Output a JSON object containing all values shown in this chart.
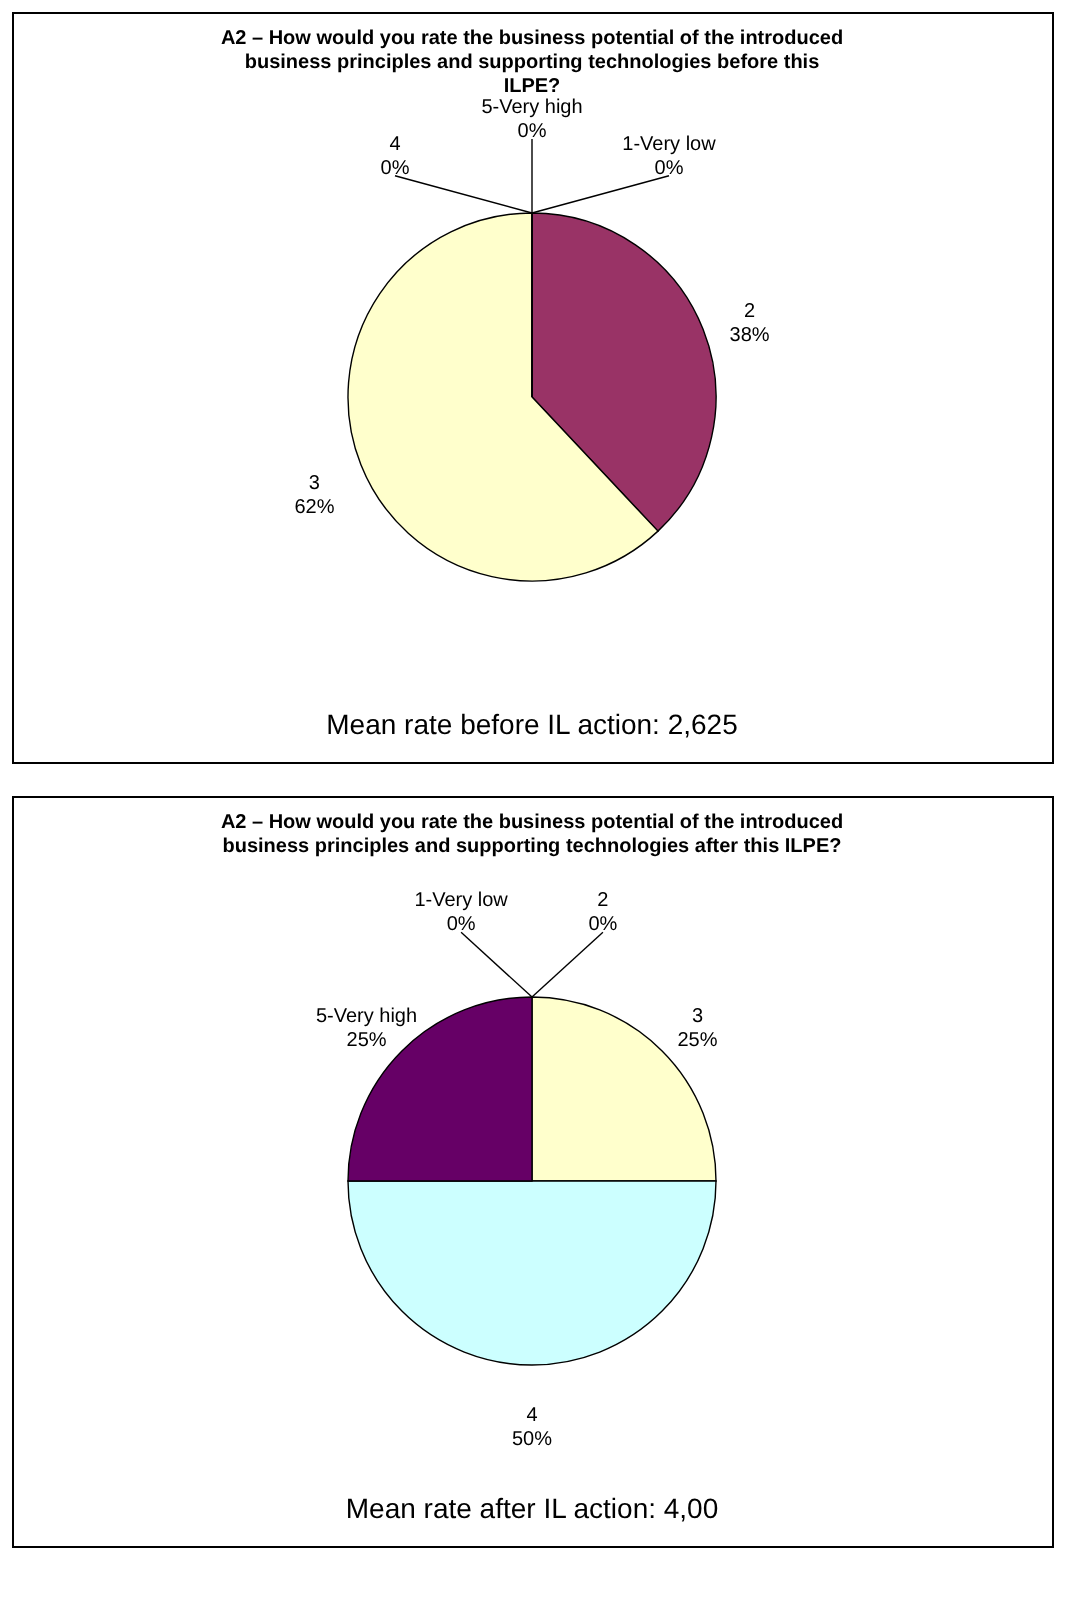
{
  "chart_data": [
    {
      "type": "pie",
      "title": "A2 – How would you rate the business potential of the introduced business principles and supporting technologies before this ILPE?",
      "categories": [
        "1-Very low",
        "2",
        "3",
        "4",
        "5-Very high"
      ],
      "values": [
        0,
        38,
        62,
        0,
        0
      ],
      "value_labels": [
        "0%",
        "38%",
        "62%",
        "0%",
        "0%"
      ],
      "colors": [
        "#9999ff",
        "#993366",
        "#ffffcc",
        "#ccffff",
        "#660066"
      ],
      "annotations": [
        "Mean rate before IL action: 2,625"
      ]
    },
    {
      "type": "pie",
      "title": "A2 – How would you rate the business potential of the introduced business principles and supporting technologies after this ILPE?",
      "categories": [
        "1-Very low",
        "2",
        "3",
        "4",
        "5-Very high"
      ],
      "values": [
        0,
        0,
        25,
        50,
        25
      ],
      "value_labels": [
        "0%",
        "0%",
        "25%",
        "50%",
        "25%"
      ],
      "colors": [
        "#9999ff",
        "#993366",
        "#ffffcc",
        "#ccffff",
        "#660066"
      ],
      "annotations": [
        "Mean rate after IL action: 4,00"
      ]
    }
  ]
}
